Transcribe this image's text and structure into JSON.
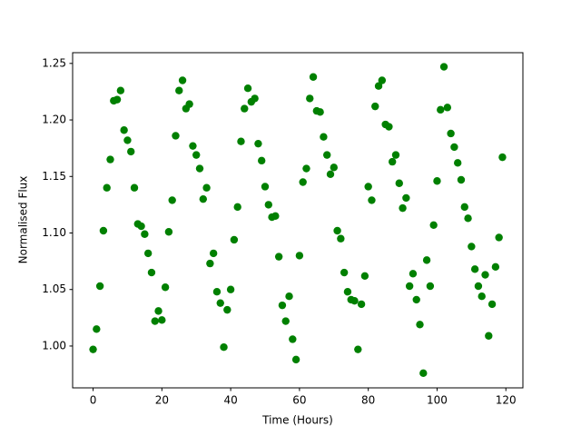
{
  "chart_data": {
    "type": "scatter",
    "xlabel": "Time (Hours)",
    "ylabel": "Normalised Flux",
    "x": [
      0,
      1,
      2,
      3,
      4,
      5,
      6,
      7,
      8,
      9,
      10,
      11,
      12,
      13,
      14,
      15,
      16,
      17,
      18,
      19,
      20,
      21,
      22,
      23,
      24,
      25,
      26,
      27,
      28,
      29,
      30,
      31,
      32,
      33,
      34,
      35,
      36,
      37,
      38,
      39,
      40,
      41,
      42,
      43,
      44,
      45,
      46,
      47,
      48,
      49,
      50,
      51,
      52,
      53,
      54,
      55,
      56,
      57,
      58,
      59,
      60,
      61,
      62,
      63,
      64,
      65,
      66,
      67,
      68,
      69,
      70,
      71,
      72,
      73,
      74,
      75,
      76,
      77,
      78,
      79,
      80,
      81,
      82,
      83,
      84,
      85,
      86,
      87,
      88,
      89,
      90,
      91,
      92,
      93,
      94,
      95,
      96,
      97,
      98,
      99,
      100,
      101,
      102,
      103,
      104,
      105,
      106,
      107,
      108,
      109,
      110,
      111,
      112,
      113,
      114,
      115,
      116,
      117,
      118,
      119
    ],
    "series": [
      {
        "color": "#008000",
        "values": [
          0.997,
          1.015,
          1.053,
          1.102,
          1.14,
          1.165,
          1.217,
          1.218,
          1.226,
          1.191,
          1.182,
          1.172,
          1.14,
          1.108,
          1.106,
          1.099,
          1.082,
          1.065,
          1.022,
          1.031,
          1.023,
          1.052,
          1.101,
          1.129,
          1.186,
          1.226,
          1.235,
          1.21,
          1.214,
          1.177,
          1.169,
          1.157,
          1.13,
          1.14,
          1.073,
          1.082,
          1.048,
          1.038,
          0.999,
          1.032,
          1.05,
          1.094,
          1.123,
          1.181,
          1.21,
          1.228,
          1.216,
          1.219,
          1.179,
          1.164,
          1.141,
          1.125,
          1.114,
          1.115,
          1.079,
          1.036,
          1.022,
          1.044,
          1.006,
          0.988,
          1.08,
          1.145,
          1.157,
          1.219,
          1.238,
          1.208,
          1.207,
          1.185,
          1.169,
          1.152,
          1.158,
          1.102,
          1.095,
          1.065,
          1.048,
          1.041,
          1.04,
          0.997,
          1.037,
          1.062,
          1.141,
          1.129,
          1.212,
          1.23,
          1.235,
          1.196,
          1.194,
          1.163,
          1.169,
          1.144,
          1.122,
          1.131,
          1.053,
          1.064,
          1.041,
          1.019,
          0.976,
          1.076,
          1.053,
          1.107,
          1.146,
          1.209,
          1.247,
          1.211,
          1.188,
          1.176,
          1.162,
          1.147,
          1.123,
          1.113,
          1.088,
          1.068,
          1.053,
          1.044,
          1.063,
          1.009,
          1.037,
          1.07,
          1.096,
          1.167
        ]
      }
    ],
    "xlim": [
      -5.95,
      124.95
    ],
    "xticks": [
      0,
      20,
      40,
      60,
      80,
      100,
      120
    ],
    "ylim": [
      0.963,
      1.2595
    ],
    "yticks": [
      {
        "value": 1,
        "label": "1.00"
      },
      1.05,
      {
        "value": 1.1,
        "label": "1.10"
      },
      1.15,
      {
        "value": 1.2,
        "label": "1.20"
      },
      1.25
    ],
    "grid": false
  }
}
